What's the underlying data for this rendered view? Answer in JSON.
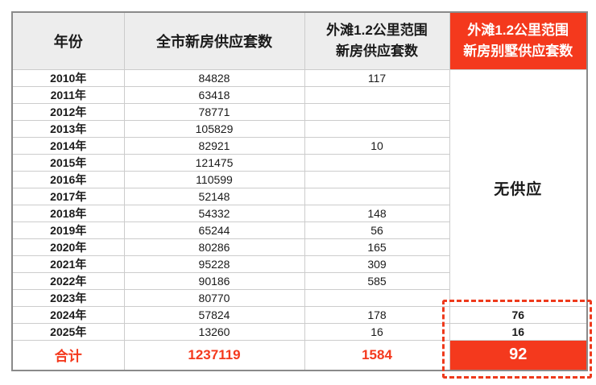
{
  "colors": {
    "accent_red": "#f4391d",
    "header_bg": "#ededed",
    "grid_line": "#cccccc",
    "outer_border": "#8a8a8a",
    "text_dark": "#1a1a1a",
    "dashed_box_red": "#ee3a1c"
  },
  "chart_data": {
    "type": "table",
    "columns": [
      "年份",
      "全市新房供应套数",
      "外滩1.2公里范围 新房供应套数",
      "外滩1.2公里范围 新房别墅供应套数"
    ],
    "header": {
      "year": "年份",
      "citywide": "全市新房供应套数",
      "bund_line1": "外滩1.2公里范围",
      "bund_line2": "新房供应套数",
      "villa_line1": "外滩1.2公里范围",
      "villa_line2": "新房别墅供应套数"
    },
    "rows": [
      {
        "year": "2010年",
        "citywide": "84828",
        "bund": "117"
      },
      {
        "year": "2011年",
        "citywide": "63418",
        "bund": ""
      },
      {
        "year": "2012年",
        "citywide": "78771",
        "bund": ""
      },
      {
        "year": "2013年",
        "citywide": "105829",
        "bund": ""
      },
      {
        "year": "2014年",
        "citywide": "82921",
        "bund": "10"
      },
      {
        "year": "2015年",
        "citywide": "121475",
        "bund": ""
      },
      {
        "year": "2016年",
        "citywide": "110599",
        "bund": ""
      },
      {
        "year": "2017年",
        "citywide": "52148",
        "bund": ""
      },
      {
        "year": "2018年",
        "citywide": "54332",
        "bund": "148"
      },
      {
        "year": "2019年",
        "citywide": "65244",
        "bund": "56"
      },
      {
        "year": "2020年",
        "citywide": "80286",
        "bund": "165"
      },
      {
        "year": "2021年",
        "citywide": "95228",
        "bund": "309"
      },
      {
        "year": "2022年",
        "citywide": "90186",
        "bund": "585"
      },
      {
        "year": "2023年",
        "citywide": "80770",
        "bund": ""
      },
      {
        "year": "2024年",
        "citywide": "57824",
        "bund": "178",
        "villa": "76"
      },
      {
        "year": "2025年",
        "citywide": "13260",
        "bund": "16",
        "villa": "16"
      }
    ],
    "villa_no_supply": "无供应",
    "total": {
      "label": "合计",
      "citywide": "1237119",
      "bund": "1584",
      "villa": "92"
    }
  }
}
